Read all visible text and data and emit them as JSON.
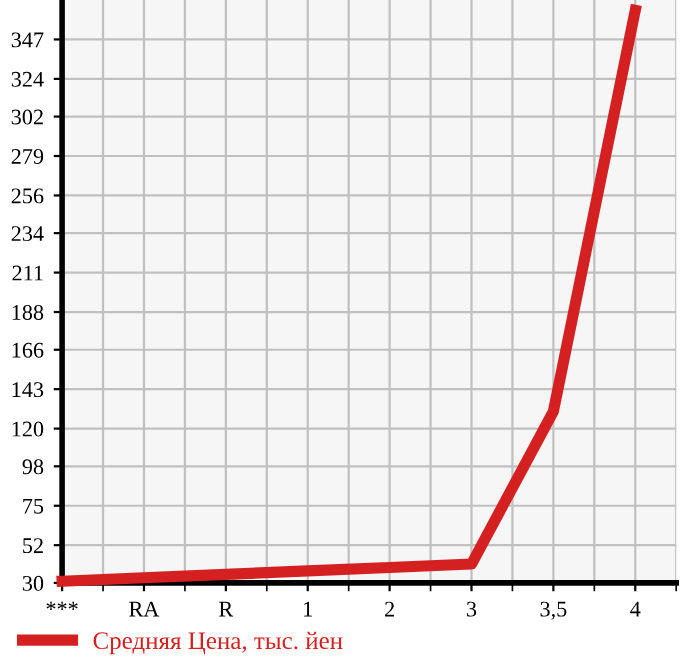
{
  "chart_data": {
    "type": "line",
    "categories": [
      "***",
      "RA",
      "R",
      "1",
      "2",
      "3",
      "3,5",
      "4"
    ],
    "series": [
      {
        "name": "Средняя Цена, тыс. йен",
        "color": "#d42020",
        "values": [
          31,
          33,
          35,
          37,
          39,
          41,
          130,
          364
        ]
      }
    ],
    "ylim": [
      30,
      370
    ],
    "yticks": [
      30,
      52,
      75,
      98,
      120,
      143,
      166,
      188,
      211,
      234,
      256,
      279,
      302,
      324,
      347
    ],
    "grid": true,
    "legend": "bottom left",
    "marker": "none",
    "line_style": "solid"
  }
}
